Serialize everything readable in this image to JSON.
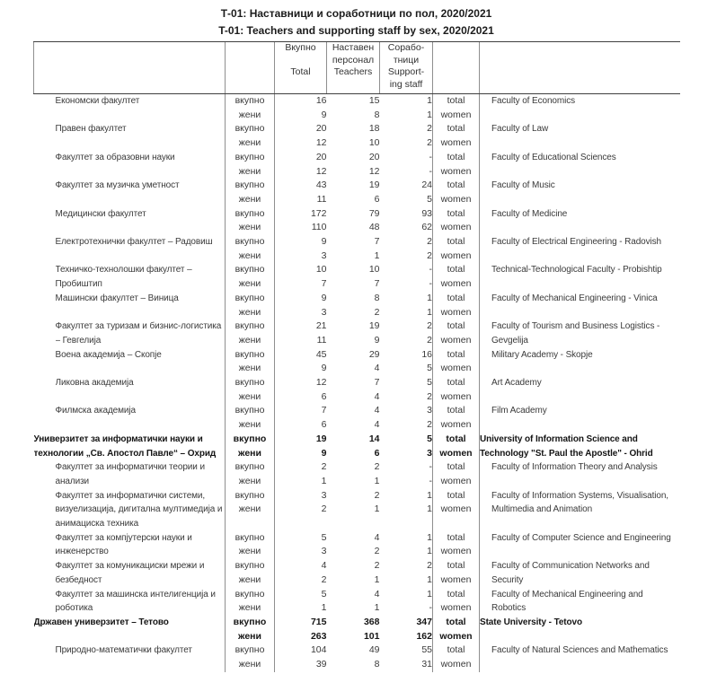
{
  "titles": {
    "mk": "Т-01: Наставници и соработници по пол, 2020/2021",
    "en": "T-01: Teachers and supporting staff by sex, 2020/2021"
  },
  "table": {
    "header": {
      "col_total": "Вкупно\n\nTotal",
      "col_teachers": "Наставен\nперсонал\nTeachers",
      "col_support": "Сорабо-\nтници\nSupport-\ning staff"
    },
    "blocks": [
      {
        "mk": "Економски факултет",
        "en": "Faculty of Economics",
        "bold": false,
        "indent": true,
        "rows": [
          {
            "label_mk": "вкупно",
            "total": "16",
            "teachers": "15",
            "support": "1",
            "label_en": "total"
          },
          {
            "label_mk": "жени",
            "total": "9",
            "teachers": "8",
            "support": "1",
            "label_en": "women"
          }
        ]
      },
      {
        "mk": "Правен факултет",
        "en": "Faculty of Law",
        "bold": false,
        "indent": true,
        "rows": [
          {
            "label_mk": "вкупно",
            "total": "20",
            "teachers": "18",
            "support": "2",
            "label_en": "total"
          },
          {
            "label_mk": "жени",
            "total": "12",
            "teachers": "10",
            "support": "2",
            "label_en": "women"
          }
        ]
      },
      {
        "mk": "Факултет за образовни науки",
        "en": "Faculty of Educational Sciences",
        "bold": false,
        "indent": true,
        "rows": [
          {
            "label_mk": "вкупно",
            "total": "20",
            "teachers": "20",
            "support": "-",
            "label_en": "total"
          },
          {
            "label_mk": "жени",
            "total": "12",
            "teachers": "12",
            "support": "-",
            "label_en": "women"
          }
        ]
      },
      {
        "mk": "Факултет  за музичка уметност",
        "en": "Faculty of Music",
        "bold": false,
        "indent": true,
        "rows": [
          {
            "label_mk": "вкупно",
            "total": "43",
            "teachers": "19",
            "support": "24",
            "label_en": "total"
          },
          {
            "label_mk": "жени",
            "total": "11",
            "teachers": "6",
            "support": "5",
            "label_en": "women"
          }
        ]
      },
      {
        "mk": "Медицински факултет",
        "en": "Faculty of Medicine",
        "bold": false,
        "indent": true,
        "rows": [
          {
            "label_mk": "вкупно",
            "total": "172",
            "teachers": "79",
            "support": "93",
            "label_en": "total"
          },
          {
            "label_mk": "жени",
            "total": "110",
            "teachers": "48",
            "support": "62",
            "label_en": "women"
          }
        ]
      },
      {
        "mk": "Електротехнички факултет –  Радовиш",
        "en": "Faculty of Electrical Engineering - Radovish",
        "bold": false,
        "indent": true,
        "rows": [
          {
            "label_mk": "вкупно",
            "total": "9",
            "teachers": "7",
            "support": "2",
            "label_en": "total"
          },
          {
            "label_mk": "жени",
            "total": "3",
            "teachers": "1",
            "support": "2",
            "label_en": "women"
          }
        ]
      },
      {
        "mk": "Техничко-технолошки факултет  –\nПробиштип",
        "en": "Technical-Technological Faculty - Probishtip",
        "bold": false,
        "indent": true,
        "rows": [
          {
            "label_mk": "вкупно",
            "total": "10",
            "teachers": "10",
            "support": "-",
            "label_en": "total"
          },
          {
            "label_mk": "жени",
            "total": "7",
            "teachers": "7",
            "support": "-",
            "label_en": "women"
          }
        ]
      },
      {
        "mk": "Машински факултет –  Виница",
        "en": "Faculty of Mechanical Engineering - Vinica",
        "bold": false,
        "indent": true,
        "rows": [
          {
            "label_mk": "вкупно",
            "total": "9",
            "teachers": "8",
            "support": "1",
            "label_en": "total"
          },
          {
            "label_mk": "жени",
            "total": "3",
            "teachers": "2",
            "support": "1",
            "label_en": "women"
          }
        ]
      },
      {
        "mk": "Факултет за туризам и бизнис-логистика\n–  Гевгелија",
        "en": "Faculty of Tourism and Business Logistics -\nGevgelija",
        "bold": false,
        "indent": true,
        "rows": [
          {
            "label_mk": "вкупно",
            "total": "21",
            "teachers": "19",
            "support": "2",
            "label_en": "total"
          },
          {
            "label_mk": "жени",
            "total": "11",
            "teachers": "9",
            "support": "2",
            "label_en": "women"
          }
        ]
      },
      {
        "mk": "Воена академија –  Скопје",
        "en": "Military Academy - Skopje",
        "bold": false,
        "indent": true,
        "rows": [
          {
            "label_mk": "вкупно",
            "total": "45",
            "teachers": "29",
            "support": "16",
            "label_en": "total"
          },
          {
            "label_mk": "жени",
            "total": "9",
            "teachers": "4",
            "support": "5",
            "label_en": "women"
          }
        ]
      },
      {
        "mk": "Ликовна академија",
        "en": "Art Academy",
        "bold": false,
        "indent": true,
        "rows": [
          {
            "label_mk": "вкупно",
            "total": "12",
            "teachers": "7",
            "support": "5",
            "label_en": "total"
          },
          {
            "label_mk": "жени",
            "total": "6",
            "teachers": "4",
            "support": "2",
            "label_en": "women"
          }
        ]
      },
      {
        "mk": "Филмска академија",
        "en": "Film Academy",
        "bold": false,
        "indent": true,
        "rows": [
          {
            "label_mk": "вкупно",
            "total": "7",
            "teachers": "4",
            "support": "3",
            "label_en": "total"
          },
          {
            "label_mk": "жени",
            "total": "6",
            "teachers": "4",
            "support": "2",
            "label_en": "women"
          }
        ]
      },
      {
        "mk": "Универзитет за информатички науки и\nтехнологии „Св. Апостол Павле“ –  Охрид",
        "en": "University of Information Science and\nTechnology \"St. Paul the Apostle\" - Ohrid",
        "bold": true,
        "indent": false,
        "rows": [
          {
            "label_mk": "вкупно",
            "total": "19",
            "teachers": "14",
            "support": "5",
            "label_en": "total"
          },
          {
            "label_mk": "жени",
            "total": "9",
            "teachers": "6",
            "support": "3",
            "label_en": "women"
          }
        ]
      },
      {
        "mk": "Факултет за информатички теории и\nанализи",
        "en": "Faculty of Information Theory and Analysis",
        "bold": false,
        "indent": true,
        "rows": [
          {
            "label_mk": "вкупно",
            "total": "2",
            "teachers": "2",
            "support": "-",
            "label_en": "total"
          },
          {
            "label_mk": "жени",
            "total": "1",
            "teachers": "1",
            "support": "-",
            "label_en": "women"
          }
        ]
      },
      {
        "mk": "Факултет за информатички системи,\nвизуелизација, дигитална мултимедија и\nанимациска техника",
        "en": "Faculty of Information Systems, Visualisation,\nMultimedia and Animation",
        "bold": false,
        "indent": true,
        "extra_lines": 1,
        "rows": [
          {
            "label_mk": "вкупно",
            "total": "3",
            "teachers": "2",
            "support": "1",
            "label_en": "total"
          },
          {
            "label_mk": "жени",
            "total": "2",
            "teachers": "1",
            "support": "1",
            "label_en": "women"
          }
        ]
      },
      {
        "mk": "Факултет за компјутерски науки и\nинженерство",
        "en": "Faculty of Computer Science and Engineering",
        "bold": false,
        "indent": true,
        "rows": [
          {
            "label_mk": "вкупно",
            "total": "5",
            "teachers": "4",
            "support": "1",
            "label_en": "total"
          },
          {
            "label_mk": "жени",
            "total": "3",
            "teachers": "2",
            "support": "1",
            "label_en": "women"
          }
        ]
      },
      {
        "mk": "Факултет за комуникациски мрежи и\nбезбедност",
        "en": "Faculty of Communication Networks and\nSecurity",
        "bold": false,
        "indent": true,
        "rows": [
          {
            "label_mk": "вкупно",
            "total": "4",
            "teachers": "2",
            "support": "2",
            "label_en": "total"
          },
          {
            "label_mk": "жени",
            "total": "2",
            "teachers": "1",
            "support": "1",
            "label_en": "women"
          }
        ]
      },
      {
        "mk": "Факултет за машинска интелигенција и\nроботика",
        "en": "Faculty of Mechanical Engineering and\nRobotics",
        "bold": false,
        "indent": true,
        "rows": [
          {
            "label_mk": "вкупно",
            "total": "5",
            "teachers": "4",
            "support": "1",
            "label_en": "total"
          },
          {
            "label_mk": "жени",
            "total": "1",
            "teachers": "1",
            "support": "-",
            "label_en": "women"
          }
        ]
      },
      {
        "mk": "Државен универзитет –  Тетово",
        "en": "State University - Tetovo",
        "bold": true,
        "indent": false,
        "rows": [
          {
            "label_mk": "вкупно",
            "total": "715",
            "teachers": "368",
            "support": "347",
            "label_en": "total"
          },
          {
            "label_mk": "жени",
            "total": "263",
            "teachers": "101",
            "support": "162",
            "label_en": "women"
          }
        ]
      },
      {
        "mk": "Природно-математички факултет",
        "en": "Faculty of Natural Sciences and Mathematics",
        "bold": false,
        "indent": true,
        "rows": [
          {
            "label_mk": "вкупно",
            "total": "104",
            "teachers": "49",
            "support": "55",
            "label_en": "total"
          },
          {
            "label_mk": "жени",
            "total": "39",
            "teachers": "8",
            "support": "31",
            "label_en": "women"
          }
        ]
      }
    ]
  }
}
